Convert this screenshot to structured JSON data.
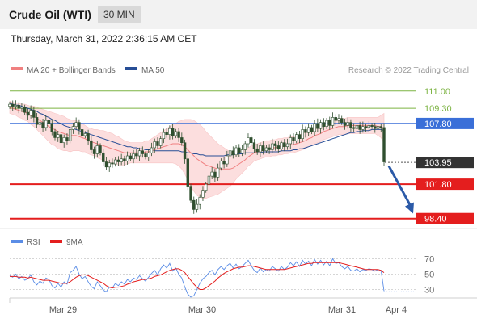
{
  "header": {
    "title": "Crude Oil (WTI)",
    "timeframe": "30 MIN"
  },
  "datetime": "Thursday, March 31, 2022 2:36:15 AM CET",
  "credit": "Research © 2022 Trading Central",
  "colors": {
    "green_level": "#7cb342",
    "blue_level": "#3a6fd8",
    "red_level": "#e41e1e",
    "current": "#333333",
    "ma20": "#f08080",
    "ma50": "#274e96",
    "band_fill": "#fcdede",
    "candle": "#2f4f2f",
    "rsi": "#5b8de6",
    "rsi_ma": "#e41e1e",
    "arrow": "#2b5aa8"
  },
  "chart_data": [
    {
      "type": "candlestick",
      "legend": [
        "MA 20 + Bollinger Bands",
        "MA 50"
      ],
      "ylim": [
        97.5,
        112.5
      ],
      "x_ticks": [
        "Mar 29",
        "Mar 30",
        "Mar 31",
        "Apr 4"
      ],
      "levels": [
        {
          "label": "111.00",
          "value": 111.0,
          "kind": "resistance-minor"
        },
        {
          "label": "109.30",
          "value": 109.3,
          "kind": "resistance-minor"
        },
        {
          "label": "107.80",
          "value": 107.8,
          "kind": "pivot"
        },
        {
          "label": "103.95",
          "value": 103.95,
          "kind": "current"
        },
        {
          "label": "101.80",
          "value": 101.8,
          "kind": "support"
        },
        {
          "label": "98.40",
          "value": 98.4,
          "kind": "support"
        }
      ],
      "close": [
        109.7,
        109.5,
        109.6,
        109.3,
        109.4,
        108.9,
        108.6,
        109.1,
        108.4,
        107.7,
        107.9,
        107.4,
        108.1,
        107.8,
        107.0,
        106.4,
        106.7,
        105.9,
        106.4,
        106.1,
        107.2,
        107.5,
        107.9,
        107.2,
        106.6,
        106.8,
        106.1,
        105.2,
        104.8,
        105.6,
        104.9,
        104.0,
        103.5,
        103.9,
        103.8,
        104.2,
        104.0,
        104.3,
        104.1,
        104.6,
        104.3,
        104.8,
        104.6,
        105.1,
        104.8,
        104.5,
        104.9,
        105.4,
        106.0,
        105.6,
        106.3,
        106.9,
        106.7,
        107.3,
        106.6,
        107.0,
        106.4,
        105.9,
        104.3,
        101.6,
        100.2,
        99.3,
        99.8,
        100.5,
        101.2,
        101.8,
        102.6,
        103.0,
        102.5,
        103.4,
        104.1,
        103.8,
        104.6,
        105.1,
        104.7,
        105.4,
        104.9,
        105.2,
        105.8,
        106.4,
        105.9,
        105.3,
        105.0,
        105.6,
        105.1,
        105.4,
        105.2,
        105.8,
        105.6,
        105.3,
        105.9,
        105.5,
        105.8,
        106.4,
        106.1,
        106.7,
        106.3,
        107.2,
        106.9,
        107.4,
        107.0,
        107.8,
        107.3,
        107.9,
        107.5,
        108.1,
        107.6,
        108.4,
        108.1,
        108.3,
        107.9,
        107.6,
        107.9,
        107.4,
        107.3,
        107.6,
        107.2,
        107.5,
        107.4,
        107.6,
        107.5,
        107.3,
        107.5,
        107.4,
        104.0
      ],
      "ma20": [
        109.4,
        109.3,
        109.2,
        109.1,
        109.0,
        108.9,
        108.8,
        108.6,
        108.5,
        108.3,
        108.1,
        107.9,
        107.7,
        107.5,
        107.3,
        107.2,
        107.0,
        106.9,
        106.8,
        106.7,
        106.6,
        106.6,
        106.6,
        106.5,
        106.4,
        106.3,
        106.1,
        106.0,
        105.9,
        105.8,
        105.7,
        105.6,
        105.5,
        105.4,
        105.3,
        105.2,
        105.1,
        105.0,
        104.9,
        104.9,
        104.9,
        104.9,
        104.9,
        104.9,
        104.9,
        105.0,
        105.0,
        105.1,
        105.2,
        105.3,
        105.4,
        105.5,
        105.6,
        105.7,
        105.8,
        105.8,
        105.8,
        105.7,
        105.5,
        105.2,
        104.9,
        104.6,
        104.3,
        104.1,
        103.9,
        103.7,
        103.6,
        103.5,
        103.4,
        103.3,
        103.3,
        103.3,
        103.3,
        103.3,
        103.4,
        103.6,
        103.8,
        104.0,
        104.2,
        104.5,
        104.7,
        104.9,
        105.0,
        105.1,
        105.2,
        105.3,
        105.3,
        105.4,
        105.4,
        105.5,
        105.5,
        105.6,
        105.6,
        105.7,
        105.7,
        105.8,
        105.9,
        106.0,
        106.1,
        106.3,
        106.4,
        106.6,
        106.7,
        106.8,
        107.0,
        107.1,
        107.2,
        107.3,
        107.4,
        107.5,
        107.5,
        107.5,
        107.6,
        107.6,
        107.6,
        107.6,
        107.6,
        107.6,
        107.6,
        107.6,
        107.6,
        107.6,
        107.5,
        107.5,
        107.3
      ],
      "ma50": [
        109.8,
        109.7,
        109.6,
        109.6,
        109.5,
        109.4,
        109.3,
        109.2,
        109.1,
        109.0,
        108.8,
        108.7,
        108.5,
        108.4,
        108.2,
        108.1,
        107.9,
        107.8,
        107.6,
        107.5,
        107.4,
        107.3,
        107.2,
        107.1,
        107.0,
        106.9,
        106.8,
        106.7,
        106.6,
        106.5,
        106.4,
        106.3,
        106.2,
        106.1,
        106.0,
        105.9,
        105.8,
        105.7,
        105.6,
        105.5,
        105.5,
        105.4,
        105.4,
        105.3,
        105.3,
        105.2,
        105.2,
        105.2,
        105.1,
        105.1,
        105.1,
        105.1,
        105.1,
        105.1,
        105.1,
        105.1,
        105.1,
        105.0,
        105.0,
        104.9,
        104.9,
        104.8,
        104.8,
        104.7,
        104.7,
        104.6,
        104.6,
        104.6,
        104.6,
        104.6,
        104.6,
        104.6,
        104.7,
        104.7,
        104.7,
        104.8,
        104.8,
        104.8,
        104.9,
        104.9,
        104.9,
        104.9,
        104.9,
        104.9,
        105.0,
        105.0,
        105.0,
        105.0,
        105.0,
        105.0,
        105.1,
        105.1,
        105.1,
        105.1,
        105.2,
        105.2,
        105.3,
        105.3,
        105.4,
        105.5,
        105.6,
        105.7,
        105.8,
        105.9,
        106.0,
        106.1,
        106.2,
        106.3,
        106.4,
        106.5,
        106.6,
        106.7,
        106.8,
        106.9,
        106.9,
        107.0,
        107.0,
        107.1,
        107.1,
        107.1,
        107.2,
        107.2,
        107.2,
        107.2,
        107.1
      ],
      "band_width": [
        0.6,
        0.6,
        0.6,
        0.7,
        0.7,
        0.8,
        0.8,
        0.9,
        1.0,
        1.1,
        1.2,
        1.3,
        1.4,
        1.5,
        1.6,
        1.6,
        1.7,
        1.7,
        1.7,
        1.6,
        1.6,
        1.5,
        1.5,
        1.4,
        1.4,
        1.3,
        1.3,
        1.3,
        1.3,
        1.4,
        1.4,
        1.5,
        1.5,
        1.5,
        1.5,
        1.4,
        1.4,
        1.3,
        1.2,
        1.1,
        1.0,
        1.0,
        1.0,
        1.0,
        1.0,
        1.1,
        1.1,
        1.2,
        1.3,
        1.4,
        1.5,
        1.6,
        1.7,
        1.8,
        1.9,
        2.0,
        2.2,
        2.4,
        2.7,
        3.0,
        3.3,
        3.5,
        3.6,
        3.6,
        3.5,
        3.3,
        3.1,
        2.9,
        2.7,
        2.5,
        2.3,
        2.1,
        1.9,
        1.7,
        1.5,
        1.3,
        1.2,
        1.1,
        1.0,
        0.9,
        0.9,
        0.8,
        0.8,
        0.8,
        0.8,
        0.8,
        0.8,
        0.8,
        0.8,
        0.8,
        0.8,
        0.8,
        0.8,
        0.8,
        0.8,
        0.8,
        0.8,
        0.8,
        0.8,
        0.8,
        0.8,
        0.8,
        0.8,
        0.8,
        0.8,
        0.8,
        0.8,
        0.8,
        0.8,
        0.8,
        0.8,
        0.8,
        0.8,
        0.8,
        0.8,
        0.8,
        0.8,
        0.8,
        0.8,
        0.8,
        0.8,
        0.8,
        0.9,
        1.1,
        1.5
      ]
    },
    {
      "type": "line",
      "series": [
        {
          "name": "RSI"
        },
        {
          "name": "9MA"
        }
      ],
      "y_ticks": [
        70,
        50,
        30
      ],
      "ylim": [
        20,
        80
      ],
      "rsi": [
        48,
        46,
        50,
        44,
        47,
        42,
        44,
        49,
        40,
        36,
        41,
        38,
        45,
        43,
        35,
        32,
        38,
        33,
        40,
        37,
        52,
        55,
        60,
        50,
        44,
        47,
        40,
        34,
        31,
        40,
        35,
        29,
        27,
        33,
        32,
        38,
        35,
        40,
        37,
        43,
        40,
        45,
        43,
        48,
        44,
        41,
        46,
        51,
        55,
        49,
        57,
        62,
        58,
        64,
        54,
        58,
        50,
        45,
        33,
        24,
        20,
        22,
        30,
        38,
        44,
        47,
        52,
        55,
        49,
        56,
        60,
        56,
        61,
        64,
        58,
        63,
        57,
        60,
        64,
        68,
        61,
        55,
        52,
        58,
        53,
        56,
        54,
        60,
        57,
        54,
        60,
        56,
        59,
        65,
        61,
        66,
        60,
        68,
        63,
        67,
        61,
        69,
        63,
        68,
        62,
        67,
        61,
        70,
        64,
        65,
        60,
        57,
        60,
        55,
        54,
        57,
        53,
        56,
        55,
        57,
        56,
        54,
        56,
        55,
        28
      ],
      "rsi_ma": [
        47,
        47,
        47,
        46,
        46,
        46,
        45,
        46,
        45,
        44,
        43,
        42,
        42,
        42,
        41,
        40,
        39,
        38,
        38,
        38,
        40,
        43,
        46,
        48,
        49,
        49,
        48,
        46,
        44,
        42,
        40,
        38,
        35,
        33,
        32,
        33,
        33,
        34,
        35,
        37,
        38,
        40,
        41,
        42,
        43,
        43,
        44,
        45,
        47,
        48,
        49,
        51,
        53,
        55,
        56,
        57,
        57,
        55,
        52,
        47,
        42,
        37,
        33,
        30,
        30,
        32,
        35,
        38,
        41,
        45,
        48,
        51,
        53,
        55,
        57,
        58,
        59,
        59,
        60,
        61,
        61,
        60,
        59,
        58,
        57,
        56,
        56,
        56,
        56,
        56,
        56,
        56,
        57,
        58,
        59,
        60,
        61,
        62,
        63,
        64,
        64,
        65,
        65,
        65,
        65,
        65,
        65,
        65,
        65,
        65,
        64,
        63,
        62,
        61,
        60,
        59,
        58,
        57,
        56,
        56,
        56,
        56,
        56,
        55,
        52
      ],
      "dotted_projection": 27
    }
  ]
}
